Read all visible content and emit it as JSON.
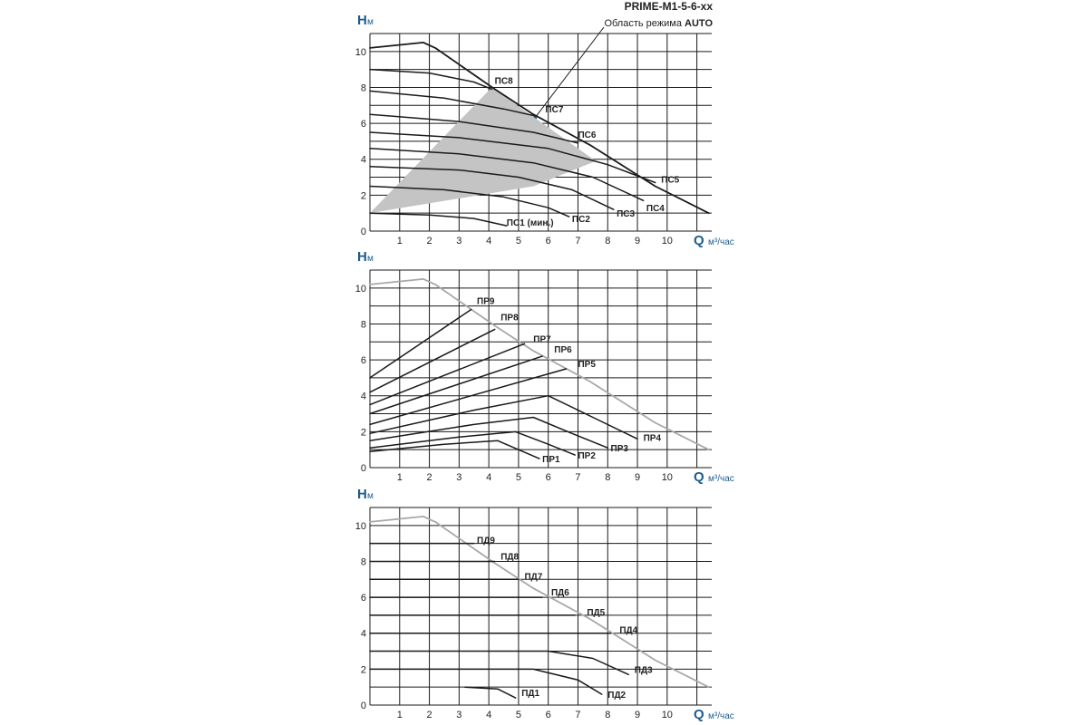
{
  "header": {
    "model": "PRIME-M1-5-6-xx",
    "auto_area_prefix": "Область режима",
    "auto_area_bold": "AUTO"
  },
  "colors": {
    "curve": "#1a1a1a",
    "grid": "#1a1a1a",
    "limit_curve_gray": "#a8a8a8",
    "auto_area": "#c4c4c4",
    "axis_title": "#1f5d8c",
    "pointer_dot": "#1f5d8c"
  },
  "chart_data": [
    {
      "id": "pc",
      "type": "line",
      "title": "",
      "y_axis_title": "H",
      "y_axis_unit": "м",
      "x_axis_title": "Q",
      "x_axis_unit": "м³/час",
      "xlim": [
        0,
        11.5
      ],
      "ylim": [
        0,
        11
      ],
      "x_ticks": [
        1,
        2,
        3,
        4,
        5,
        6,
        7,
        8,
        9,
        10
      ],
      "y_ticks": [
        0,
        2,
        4,
        6,
        8,
        10
      ],
      "grid": true,
      "shaded_region": {
        "name": "Область режима AUTO",
        "polygon": [
          [
            0,
            1
          ],
          [
            4.1,
            8
          ],
          [
            7.6,
            3.9
          ],
          [
            5.5,
            2.5
          ],
          [
            0,
            1
          ]
        ]
      },
      "series": [
        {
          "name": "limit",
          "points": [
            [
              0,
              10.2
            ],
            [
              1.8,
              10.5
            ],
            [
              2.2,
              10.2
            ],
            [
              4.2,
              7.9
            ],
            [
              5.5,
              6.5
            ],
            [
              7.4,
              4.8
            ],
            [
              9.6,
              2.5
            ],
            [
              11.4,
              1.0
            ]
          ]
        },
        {
          "name": "ПС8",
          "label": "ПС8",
          "label_at": [
            4.2,
            8.2
          ],
          "points": [
            [
              0,
              9.0
            ],
            [
              2,
              8.8
            ],
            [
              3.5,
              8.3
            ],
            [
              4.1,
              7.9
            ]
          ]
        },
        {
          "name": "ПС7",
          "label": "ПС7",
          "label_at": [
            5.9,
            6.6
          ],
          "points": [
            [
              0,
              7.8
            ],
            [
              2.5,
              7.4
            ],
            [
              4.5,
              6.8
            ],
            [
              5.6,
              6.4
            ]
          ]
        },
        {
          "name": "ПС6",
          "label": "ПС6",
          "label_at": [
            7.0,
            5.2
          ],
          "points": [
            [
              0,
              6.5
            ],
            [
              3,
              6.1
            ],
            [
              5.5,
              5.5
            ],
            [
              7.0,
              4.9
            ]
          ]
        },
        {
          "name": "ПС5",
          "label": "ПС5",
          "label_at": [
            9.8,
            2.7
          ],
          "points": [
            [
              0,
              5.5
            ],
            [
              3,
              5.2
            ],
            [
              6,
              4.6
            ],
            [
              8,
              3.7
            ],
            [
              9.6,
              2.7
            ]
          ]
        },
        {
          "name": "ПС4",
          "label": "ПС4",
          "label_at": [
            9.3,
            1.1
          ],
          "points": [
            [
              0,
              4.6
            ],
            [
              3,
              4.3
            ],
            [
              5.5,
              3.8
            ],
            [
              7.5,
              3.0
            ],
            [
              9.2,
              1.7
            ]
          ]
        },
        {
          "name": "ПС3",
          "label": "ПС3",
          "label_at": [
            8.3,
            0.8
          ],
          "points": [
            [
              0,
              3.6
            ],
            [
              3,
              3.4
            ],
            [
              5,
              3.0
            ],
            [
              6.8,
              2.3
            ],
            [
              8.2,
              1.2
            ]
          ]
        },
        {
          "name": "ПС2",
          "label": "ПС2",
          "label_at": [
            6.8,
            0.5
          ],
          "points": [
            [
              0,
              2.5
            ],
            [
              2.5,
              2.3
            ],
            [
              4.5,
              1.9
            ],
            [
              6.0,
              1.3
            ],
            [
              6.7,
              0.8
            ]
          ]
        },
        {
          "name": "ПС1 (мин.)",
          "label": "ПС1 (мин.)",
          "label_at": [
            4.6,
            0.3
          ],
          "points": [
            [
              0,
              1.0
            ],
            [
              2,
              0.9
            ],
            [
              3.5,
              0.7
            ],
            [
              4.6,
              0.3
            ]
          ]
        }
      ]
    },
    {
      "id": "pr",
      "type": "line",
      "title": "",
      "y_axis_title": "H",
      "y_axis_unit": "м",
      "x_axis_title": "Q",
      "x_axis_unit": "м³/час",
      "xlim": [
        0,
        11.5
      ],
      "ylim": [
        0,
        11
      ],
      "x_ticks": [
        1,
        2,
        3,
        4,
        5,
        6,
        7,
        8,
        9,
        10
      ],
      "y_ticks": [
        0,
        2,
        4,
        6,
        8,
        10
      ],
      "grid": true,
      "series": [
        {
          "name": "limit",
          "gray": true,
          "points": [
            [
              0,
              10.2
            ],
            [
              1.8,
              10.5
            ],
            [
              2.2,
              10.2
            ],
            [
              4.2,
              7.9
            ],
            [
              5.5,
              6.5
            ],
            [
              7.4,
              4.8
            ],
            [
              9.6,
              2.5
            ],
            [
              11.4,
              1.0
            ]
          ]
        },
        {
          "name": "ПР9",
          "label": "ПР9",
          "label_at": [
            3.6,
            9.1
          ],
          "points": [
            [
              0,
              5.0
            ],
            [
              3.4,
              8.8
            ]
          ]
        },
        {
          "name": "ПР8",
          "label": "ПР8",
          "label_at": [
            4.4,
            8.2
          ],
          "points": [
            [
              0,
              4.2
            ],
            [
              4.2,
              7.7
            ]
          ]
        },
        {
          "name": "ПР7",
          "label": "ПР7",
          "label_at": [
            5.5,
            7.0
          ],
          "points": [
            [
              0,
              3.5
            ],
            [
              5.2,
              6.9
            ]
          ]
        },
        {
          "name": "ПР6",
          "label": "ПР6",
          "label_at": [
            6.2,
            6.4
          ],
          "points": [
            [
              0,
              3.0
            ],
            [
              5.8,
              6.2
            ]
          ]
        },
        {
          "name": "ПР5",
          "label": "ПР5",
          "label_at": [
            7.0,
            5.6
          ],
          "points": [
            [
              0,
              2.4
            ],
            [
              6.6,
              5.5
            ]
          ]
        },
        {
          "name": "ПР4",
          "label": "ПР4",
          "label_at": [
            9.2,
            1.5
          ],
          "points": [
            [
              0,
              1.9
            ],
            [
              3.5,
              3.2
            ],
            [
              6.0,
              4.0
            ],
            [
              7.5,
              2.8
            ],
            [
              9.0,
              1.6
            ]
          ]
        },
        {
          "name": "ПР3",
          "label": "ПР3",
          "label_at": [
            8.1,
            0.9
          ],
          "points": [
            [
              0,
              1.5
            ],
            [
              3.5,
              2.4
            ],
            [
              5.5,
              2.8
            ],
            [
              6.8,
              1.9
            ],
            [
              8.0,
              1.1
            ]
          ]
        },
        {
          "name": "ПР2",
          "label": "ПР2",
          "label_at": [
            7.0,
            0.5
          ],
          "points": [
            [
              0,
              1.1
            ],
            [
              3,
              1.7
            ],
            [
              4.9,
              2.0
            ],
            [
              6.0,
              1.3
            ],
            [
              6.9,
              0.7
            ]
          ]
        },
        {
          "name": "ПР1",
          "label": "ПР1",
          "label_at": [
            5.8,
            0.3
          ],
          "points": [
            [
              0,
              0.9
            ],
            [
              2.5,
              1.3
            ],
            [
              4.3,
              1.5
            ],
            [
              5.0,
              1.0
            ],
            [
              5.7,
              0.5
            ]
          ]
        }
      ]
    },
    {
      "id": "pd",
      "type": "line",
      "title": "",
      "y_axis_title": "H",
      "y_axis_unit": "м",
      "x_axis_title": "Q",
      "x_axis_unit": "м³/час",
      "xlim": [
        0,
        11.5
      ],
      "ylim": [
        0,
        11
      ],
      "x_ticks": [
        1,
        2,
        3,
        4,
        5,
        6,
        7,
        8,
        9,
        10
      ],
      "y_ticks": [
        0,
        2,
        4,
        6,
        8,
        10
      ],
      "grid": true,
      "series": [
        {
          "name": "limit",
          "gray": true,
          "points": [
            [
              0,
              10.2
            ],
            [
              1.8,
              10.5
            ],
            [
              2.2,
              10.2
            ],
            [
              4.2,
              7.9
            ],
            [
              5.5,
              6.5
            ],
            [
              7.4,
              4.8
            ],
            [
              9.6,
              2.5
            ],
            [
              11.4,
              1.0
            ]
          ]
        },
        {
          "name": "ПД9",
          "label": "ПД9",
          "label_at": [
            3.6,
            9.0
          ],
          "points": [
            [
              0,
              9.0
            ],
            [
              3.5,
              9.0
            ]
          ]
        },
        {
          "name": "ПД8",
          "label": "ПД8",
          "label_at": [
            4.4,
            8.1
          ],
          "points": [
            [
              0,
              8.0
            ],
            [
              4.2,
              8.0
            ]
          ]
        },
        {
          "name": "ПД7",
          "label": "ПД7",
          "label_at": [
            5.2,
            7.0
          ],
          "points": [
            [
              0,
              7.0
            ],
            [
              5.0,
              7.0
            ]
          ]
        },
        {
          "name": "ПД6",
          "label": "ПД6",
          "label_at": [
            6.1,
            6.1
          ],
          "points": [
            [
              0,
              6.0
            ],
            [
              5.8,
              6.0
            ]
          ]
        },
        {
          "name": "ПД5",
          "label": "ПД5",
          "label_at": [
            7.3,
            5.0
          ],
          "points": [
            [
              0,
              5.0
            ],
            [
              6.9,
              5.0
            ]
          ]
        },
        {
          "name": "ПД4",
          "label": "ПД4",
          "label_at": [
            8.4,
            4.0
          ],
          "points": [
            [
              0,
              4.0
            ],
            [
              8.1,
              4.0
            ]
          ]
        },
        {
          "name": "ПД3",
          "label": "ПД3",
          "label_at": [
            8.9,
            1.8
          ],
          "points": [
            [
              0,
              3.0
            ],
            [
              6.0,
              3.0
            ],
            [
              7.5,
              2.6
            ],
            [
              8.7,
              1.7
            ]
          ]
        },
        {
          "name": "ПД2",
          "label": "ПД2",
          "label_at": [
            8.0,
            0.4
          ],
          "points": [
            [
              0,
              2.0
            ],
            [
              5.5,
              2.0
            ],
            [
              7.0,
              1.4
            ],
            [
              7.8,
              0.6
            ]
          ]
        },
        {
          "name": "ПД1",
          "label": "ПД1",
          "label_at": [
            5.1,
            0.5
          ],
          "points": [
            [
              3.2,
              1.0
            ],
            [
              4.3,
              0.9
            ],
            [
              4.9,
              0.4
            ]
          ]
        }
      ]
    }
  ]
}
